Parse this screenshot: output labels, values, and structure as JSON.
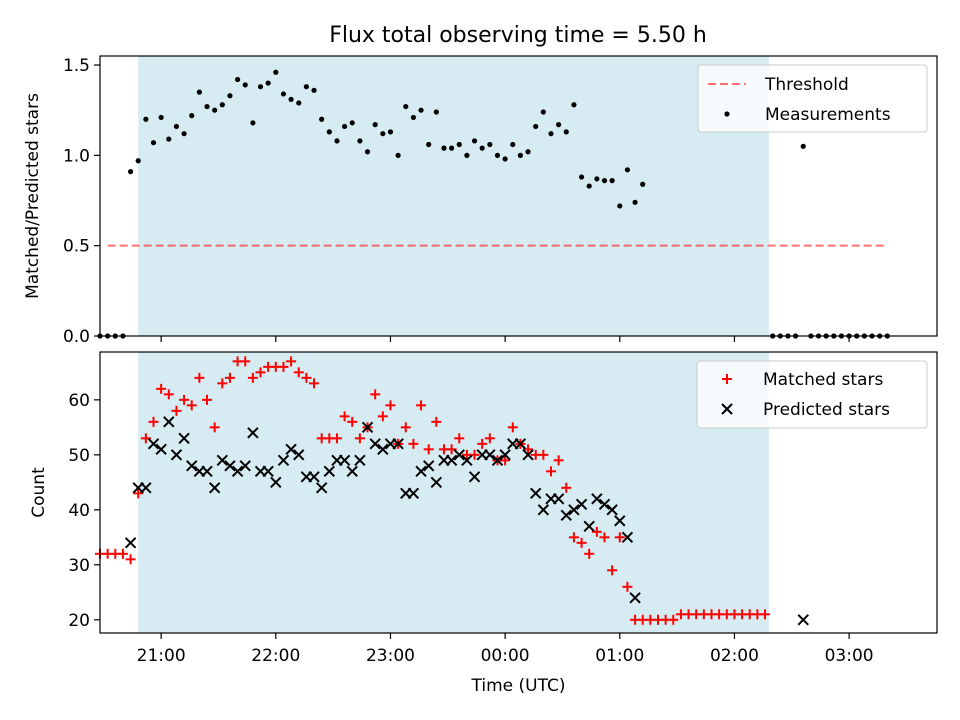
{
  "title": "Flux total observing time = 5.50 h",
  "colors": {
    "shade": "#add8e6",
    "threshold": "#ff0000",
    "measurement": "#000000",
    "matched": "#ff0000",
    "predicted": "#000000"
  },
  "chart_data": [
    {
      "type": "scatter",
      "panel": "top",
      "ylabel": "Matched/Predicted stars",
      "ylim": [
        0,
        1.55
      ],
      "yticks": [
        0.0,
        0.5,
        1.0,
        1.5
      ],
      "ytick_labels": [
        "0.0",
        "0.5",
        "1.0",
        "1.5"
      ],
      "xlim": [
        "20:28",
        "03:46"
      ],
      "observing_window": [
        "20:48",
        "02:18"
      ],
      "threshold": {
        "name": "Threshold",
        "value": 0.5,
        "x_range": [
          "20:32",
          "03:20"
        ],
        "style": "dashed"
      },
      "legend": {
        "position": "top-right",
        "entries": [
          "Threshold",
          "Measurements"
        ]
      },
      "series": [
        {
          "name": "Measurements",
          "marker": "dot",
          "points": [
            [
              "20:28",
              0
            ],
            [
              "20:32",
              0
            ],
            [
              "20:36",
              0
            ],
            [
              "20:40",
              0
            ],
            [
              "20:44",
              0.91
            ],
            [
              "20:48",
              0.97
            ],
            [
              "20:52",
              1.2
            ],
            [
              "20:56",
              1.07
            ],
            [
              "21:00",
              1.21
            ],
            [
              "21:04",
              1.09
            ],
            [
              "21:08",
              1.16
            ],
            [
              "21:12",
              1.12
            ],
            [
              "21:16",
              1.22
            ],
            [
              "21:20",
              1.35
            ],
            [
              "21:24",
              1.27
            ],
            [
              "21:28",
              1.25
            ],
            [
              "21:32",
              1.28
            ],
            [
              "21:36",
              1.33
            ],
            [
              "21:40",
              1.42
            ],
            [
              "21:44",
              1.39
            ],
            [
              "21:48",
              1.18
            ],
            [
              "21:52",
              1.38
            ],
            [
              "21:56",
              1.4
            ],
            [
              "22:00",
              1.46
            ],
            [
              "22:04",
              1.34
            ],
            [
              "22:08",
              1.31
            ],
            [
              "22:12",
              1.29
            ],
            [
              "22:16",
              1.38
            ],
            [
              "22:20",
              1.36
            ],
            [
              "22:24",
              1.2
            ],
            [
              "22:28",
              1.13
            ],
            [
              "22:32",
              1.08
            ],
            [
              "22:36",
              1.16
            ],
            [
              "22:40",
              1.18
            ],
            [
              "22:44",
              1.08
            ],
            [
              "22:48",
              1.02
            ],
            [
              "22:52",
              1.17
            ],
            [
              "22:56",
              1.12
            ],
            [
              "23:00",
              1.13
            ],
            [
              "23:04",
              1.0
            ],
            [
              "23:08",
              1.27
            ],
            [
              "23:12",
              1.21
            ],
            [
              "23:16",
              1.25
            ],
            [
              "23:20",
              1.06
            ],
            [
              "23:24",
              1.24
            ],
            [
              "23:28",
              1.04
            ],
            [
              "23:32",
              1.04
            ],
            [
              "23:36",
              1.06
            ],
            [
              "23:40",
              1.0
            ],
            [
              "23:44",
              1.08
            ],
            [
              "23:48",
              1.04
            ],
            [
              "23:52",
              1.06
            ],
            [
              "23:56",
              1.0
            ],
            [
              "00:00",
              0.98
            ],
            [
              "00:04",
              1.06
            ],
            [
              "00:08",
              1.0
            ],
            [
              "00:12",
              1.02
            ],
            [
              "00:16",
              1.16
            ],
            [
              "00:20",
              1.24
            ],
            [
              "00:24",
              1.12
            ],
            [
              "00:28",
              1.17
            ],
            [
              "00:32",
              1.13
            ],
            [
              "00:36",
              1.28
            ],
            [
              "00:40",
              0.88
            ],
            [
              "00:44",
              0.83
            ],
            [
              "00:48",
              0.87
            ],
            [
              "00:52",
              0.86
            ],
            [
              "00:56",
              0.86
            ],
            [
              "01:00",
              0.72
            ],
            [
              "01:04",
              0.92
            ],
            [
              "01:08",
              0.74
            ],
            [
              "01:12",
              0.84
            ],
            [
              "02:20",
              0
            ],
            [
              "02:24",
              0
            ],
            [
              "02:28",
              0
            ],
            [
              "02:32",
              0
            ],
            [
              "02:36",
              1.05
            ],
            [
              "02:40",
              0
            ],
            [
              "02:44",
              0
            ],
            [
              "02:48",
              0
            ],
            [
              "02:52",
              0
            ],
            [
              "02:56",
              0
            ],
            [
              "03:00",
              0
            ],
            [
              "03:04",
              0
            ],
            [
              "03:08",
              0
            ],
            [
              "03:12",
              0
            ],
            [
              "03:16",
              0
            ],
            [
              "03:20",
              0
            ]
          ]
        }
      ]
    },
    {
      "type": "scatter",
      "panel": "bottom",
      "xlabel": "Time (UTC)",
      "ylabel": "Count",
      "ylim": [
        17.6,
        68.7
      ],
      "yticks": [
        20,
        30,
        40,
        50,
        60
      ],
      "ytick_labels": [
        "20",
        "30",
        "40",
        "50",
        "60"
      ],
      "xlim": [
        "20:28",
        "03:46"
      ],
      "xticks": [
        "21:00",
        "22:00",
        "23:00",
        "00:00",
        "01:00",
        "02:00",
        "03:00"
      ],
      "observing_window": [
        "20:48",
        "02:18"
      ],
      "legend": {
        "position": "top-right",
        "entries": [
          "Matched stars",
          "Predicted stars"
        ]
      },
      "series": [
        {
          "name": "Matched stars",
          "marker": "plus",
          "points": [
            [
              "20:28",
              32
            ],
            [
              "20:32",
              32
            ],
            [
              "20:36",
              32
            ],
            [
              "20:40",
              32
            ],
            [
              "20:44",
              31
            ],
            [
              "20:48",
              43
            ],
            [
              "20:52",
              53
            ],
            [
              "20:56",
              56
            ],
            [
              "21:00",
              62
            ],
            [
              "21:04",
              61
            ],
            [
              "21:08",
              58
            ],
            [
              "21:12",
              60
            ],
            [
              "21:16",
              59
            ],
            [
              "21:20",
              64
            ],
            [
              "21:24",
              60
            ],
            [
              "21:28",
              55
            ],
            [
              "21:32",
              63
            ],
            [
              "21:36",
              64
            ],
            [
              "21:40",
              67
            ],
            [
              "21:44",
              67
            ],
            [
              "21:48",
              64
            ],
            [
              "21:52",
              65
            ],
            [
              "21:56",
              66
            ],
            [
              "22:00",
              66
            ],
            [
              "22:04",
              66
            ],
            [
              "22:08",
              67
            ],
            [
              "22:12",
              65
            ],
            [
              "22:16",
              64
            ],
            [
              "22:20",
              63
            ],
            [
              "22:24",
              53
            ],
            [
              "22:28",
              53
            ],
            [
              "22:32",
              53
            ],
            [
              "22:36",
              57
            ],
            [
              "22:40",
              56
            ],
            [
              "22:44",
              53
            ],
            [
              "22:48",
              55
            ],
            [
              "22:52",
              61
            ],
            [
              "22:56",
              57
            ],
            [
              "23:00",
              59
            ],
            [
              "23:04",
              52
            ],
            [
              "23:08",
              55
            ],
            [
              "23:12",
              52
            ],
            [
              "23:16",
              59
            ],
            [
              "23:20",
              51
            ],
            [
              "23:24",
              56
            ],
            [
              "23:28",
              51
            ],
            [
              "23:32",
              51
            ],
            [
              "23:36",
              53
            ],
            [
              "23:40",
              50
            ],
            [
              "23:44",
              50
            ],
            [
              "23:48",
              52
            ],
            [
              "23:52",
              53
            ],
            [
              "23:56",
              49
            ],
            [
              "00:00",
              49
            ],
            [
              "00:04",
              55
            ],
            [
              "00:08",
              52
            ],
            [
              "00:12",
              51
            ],
            [
              "00:16",
              50
            ],
            [
              "00:20",
              50
            ],
            [
              "00:24",
              47
            ],
            [
              "00:28",
              49
            ],
            [
              "00:32",
              44
            ],
            [
              "00:36",
              35
            ],
            [
              "00:40",
              34
            ],
            [
              "00:44",
              32
            ],
            [
              "00:48",
              36
            ],
            [
              "00:52",
              35
            ],
            [
              "00:56",
              29
            ],
            [
              "01:00",
              35
            ],
            [
              "01:04",
              26
            ],
            [
              "01:08",
              20
            ],
            [
              "01:12",
              20
            ],
            [
              "01:16",
              20
            ],
            [
              "01:20",
              20
            ],
            [
              "01:24",
              20
            ],
            [
              "01:28",
              20
            ],
            [
              "01:32",
              21
            ],
            [
              "01:36",
              21
            ],
            [
              "01:40",
              21
            ],
            [
              "01:44",
              21
            ],
            [
              "01:48",
              21
            ],
            [
              "01:52",
              21
            ],
            [
              "01:56",
              21
            ],
            [
              "02:00",
              21
            ],
            [
              "02:04",
              21
            ],
            [
              "02:08",
              21
            ],
            [
              "02:12",
              21
            ],
            [
              "02:16",
              21
            ]
          ]
        },
        {
          "name": "Predicted stars",
          "marker": "x",
          "points": [
            [
              "20:44",
              34
            ],
            [
              "20:48",
              44
            ],
            [
              "20:52",
              44
            ],
            [
              "20:56",
              52
            ],
            [
              "21:00",
              51
            ],
            [
              "21:04",
              56
            ],
            [
              "21:08",
              50
            ],
            [
              "21:12",
              53
            ],
            [
              "21:16",
              48
            ],
            [
              "21:20",
              47
            ],
            [
              "21:24",
              47
            ],
            [
              "21:28",
              44
            ],
            [
              "21:32",
              49
            ],
            [
              "21:36",
              48
            ],
            [
              "21:40",
              47
            ],
            [
              "21:44",
              48
            ],
            [
              "21:48",
              54
            ],
            [
              "21:52",
              47
            ],
            [
              "21:56",
              47
            ],
            [
              "22:00",
              45
            ],
            [
              "22:04",
              49
            ],
            [
              "22:08",
              51
            ],
            [
              "22:12",
              50
            ],
            [
              "22:16",
              46
            ],
            [
              "22:20",
              46
            ],
            [
              "22:24",
              44
            ],
            [
              "22:28",
              47
            ],
            [
              "22:32",
              49
            ],
            [
              "22:36",
              49
            ],
            [
              "22:40",
              47
            ],
            [
              "22:44",
              49
            ],
            [
              "22:48",
              55
            ],
            [
              "22:52",
              52
            ],
            [
              "22:56",
              51
            ],
            [
              "23:00",
              52
            ],
            [
              "23:04",
              52
            ],
            [
              "23:08",
              43
            ],
            [
              "23:12",
              43
            ],
            [
              "23:16",
              47
            ],
            [
              "23:20",
              48
            ],
            [
              "23:24",
              45
            ],
            [
              "23:28",
              49
            ],
            [
              "23:32",
              49
            ],
            [
              "23:36",
              50
            ],
            [
              "23:40",
              49
            ],
            [
              "23:44",
              46
            ],
            [
              "23:48",
              50
            ],
            [
              "23:52",
              50
            ],
            [
              "23:56",
              49
            ],
            [
              "00:00",
              50
            ],
            [
              "00:04",
              52
            ],
            [
              "00:08",
              52
            ],
            [
              "00:12",
              50
            ],
            [
              "00:16",
              43
            ],
            [
              "00:20",
              40
            ],
            [
              "00:24",
              42
            ],
            [
              "00:28",
              42
            ],
            [
              "00:32",
              39
            ],
            [
              "00:36",
              40
            ],
            [
              "00:40",
              41
            ],
            [
              "00:44",
              37
            ],
            [
              "00:48",
              42
            ],
            [
              "00:52",
              41
            ],
            [
              "00:56",
              40
            ],
            [
              "01:00",
              38
            ],
            [
              "01:04",
              35
            ],
            [
              "01:08",
              24
            ],
            [
              "02:36",
              20
            ]
          ]
        }
      ]
    }
  ]
}
